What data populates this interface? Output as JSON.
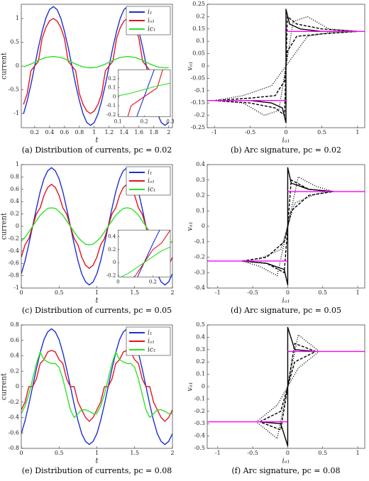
{
  "chart_data": [
    {
      "type": "line",
      "caption": "(a) Distribution of currents, pc = 0.02",
      "xlabel": "t",
      "ylabel": "current",
      "xlim": [
        0.02,
        2.05
      ],
      "xticks": [
        0.2,
        0.4,
        0.6,
        0.8,
        1,
        1.2,
        1.4,
        1.6,
        1.8,
        2
      ],
      "ylim": [
        -1.3,
        1.3
      ],
      "yticks": [
        -1,
        -0.5,
        0,
        0.5,
        1
      ],
      "legend": "upper right",
      "x": [
        0.05,
        0.1,
        0.15,
        0.2,
        0.25,
        0.3,
        0.35,
        0.4,
        0.45,
        0.5,
        0.55,
        0.6,
        0.65,
        0.7,
        0.75,
        0.8,
        0.85,
        0.9,
        0.95,
        1,
        1.05,
        1.1,
        1.15,
        1.2,
        1.25,
        1.3,
        1.35,
        1.4,
        1.45,
        1.5,
        1.55,
        1.6,
        1.65,
        1.7,
        1.75,
        1.8,
        1.85,
        1.9,
        1.95,
        2
      ],
      "series": [
        {
          "name": "i₁",
          "color": "#1f2fd0",
          "values": [
            -1.01,
            -0.73,
            -0.39,
            0,
            0.39,
            0.73,
            1.01,
            1.19,
            1.25,
            1.19,
            1.01,
            0.73,
            0.39,
            0,
            -0.39,
            -0.73,
            -1.01,
            -1.19,
            -1.25,
            -1.19,
            -1.01,
            -0.73,
            -0.39,
            0,
            0.39,
            0.73,
            1.01,
            1.19,
            1.25,
            1.19,
            1.01,
            0.73,
            0.39,
            0,
            -0.39,
            -0.73,
            -1.01,
            -1.19,
            -1.25,
            -1.19
          ]
        },
        {
          "name": "iₐ₁",
          "color": "#e0141e",
          "values": [
            -0.81,
            -0.58,
            -0.1,
            0,
            0.1,
            0.58,
            0.81,
            0.95,
            1,
            0.95,
            0.81,
            0.58,
            0.1,
            0,
            -0.1,
            -0.58,
            -0.81,
            -0.95,
            -1,
            -0.95,
            -0.81,
            -0.58,
            -0.1,
            0,
            0.1,
            0.58,
            0.81,
            0.95,
            1,
            0.95,
            0.81,
            0.58,
            0.1,
            0,
            -0.1,
            -0.58,
            -0.81,
            -0.95,
            -1,
            -0.95
          ]
        },
        {
          "name": "ic₁",
          "color": "#2ee02a",
          "values": [
            -0.02,
            0.01,
            0.04,
            0.08,
            0.12,
            0.15,
            0.18,
            0.19,
            0.2,
            0.19,
            0.18,
            0.15,
            0.12,
            0.08,
            0.04,
            0.01,
            -0.02,
            -0.03,
            -0.04,
            -0.03,
            -0.02,
            0.01,
            0.04,
            0.08,
            0.12,
            0.15,
            0.18,
            0.19,
            0.2,
            0.19,
            0.18,
            0.15,
            0.12,
            0.08,
            0.04,
            0.01,
            -0.02,
            -0.03,
            -0.04,
            -0.03
          ]
        }
      ],
      "inset": {
        "xlim": [
          0.1,
          0.3
        ],
        "xticks": [
          0.1,
          0.2,
          0.3
        ],
        "ylim": [
          -0.22,
          0.3
        ],
        "yticks": [
          -0.2,
          -0.1,
          0,
          0.1,
          0.2
        ]
      }
    },
    {
      "type": "line",
      "caption": "(b) Arc signature, pc = 0.02",
      "xlabel": "iₐ₁",
      "ylabel": "vₐ₁",
      "xlim": [
        -1.1,
        1.1
      ],
      "xticks": [
        -1,
        -0.5,
        0,
        0.5,
        1
      ],
      "ylim": [
        -0.25,
        0.25
      ],
      "yticks": [
        -0.25,
        -0.2,
        -0.15,
        -0.1,
        -0.05,
        0,
        0.05,
        0.1,
        0.15,
        0.2,
        0.25
      ],
      "series": [
        {
          "color": "#000000",
          "style": "dotted",
          "x": [
            -1,
            -0.6,
            -0.2,
            0,
            0.2,
            0.3,
            0.6,
            1,
            0.6,
            0.3,
            0.1,
            0,
            -0.1,
            -0.3,
            -0.6,
            -1
          ],
          "values": [
            -0.14,
            -0.12,
            -0.08,
            0,
            0.08,
            0.12,
            0.135,
            0.14,
            0.15,
            0.2,
            0.18,
            0,
            -0.18,
            -0.2,
            -0.15,
            -0.14
          ]
        },
        {
          "color": "#000000",
          "style": "dashed",
          "x": [
            -1,
            -0.5,
            -0.15,
            -0.02,
            0,
            0.02,
            0.15,
            0.5,
            1,
            0.5,
            0.15,
            0.02,
            0,
            -0.02,
            -0.15,
            -0.5,
            -1
          ],
          "values": [
            -0.14,
            -0.13,
            -0.12,
            -0.06,
            0,
            0.06,
            0.12,
            0.13,
            0.14,
            0.15,
            0.17,
            0.2,
            0,
            -0.2,
            -0.17,
            -0.15,
            -0.14
          ]
        },
        {
          "color": "#000000",
          "style": "solid",
          "x": [
            -1,
            -0.5,
            -0.2,
            -0.05,
            0,
            0,
            0.05,
            0.2,
            0.5,
            1
          ],
          "values": [
            -0.14,
            -0.14,
            -0.15,
            -0.17,
            -0.23,
            0.23,
            0.17,
            0.15,
            0.14,
            0.14
          ]
        },
        {
          "color": "#ff00ff",
          "style": "solid",
          "x": [
            -1.1,
            0
          ],
          "values": [
            -0.14,
            -0.14
          ]
        },
        {
          "color": "#ff00ff",
          "style": "solid",
          "x": [
            0,
            1.1
          ],
          "values": [
            0.14,
            0.14
          ]
        }
      ]
    },
    {
      "type": "line",
      "caption": "(c) Distribution of currents, pc = 0.05",
      "xlabel": "t",
      "ylabel": "current",
      "xlim": [
        0,
        2
      ],
      "xticks": [
        0,
        0.5,
        1,
        1.5,
        2
      ],
      "ylim": [
        -1,
        1
      ],
      "yticks": [
        -1,
        -0.8,
        -0.6,
        -0.4,
        -0.2,
        0,
        0.2,
        0.4,
        0.6,
        0.8,
        1
      ],
      "legend": "upper right",
      "x": [
        0,
        0.05,
        0.1,
        0.15,
        0.2,
        0.25,
        0.3,
        0.35,
        0.4,
        0.45,
        0.5,
        0.55,
        0.6,
        0.65,
        0.7,
        0.75,
        0.8,
        0.85,
        0.9,
        0.95,
        1,
        1.05,
        1.1,
        1.15,
        1.2,
        1.25,
        1.3,
        1.35,
        1.4,
        1.45,
        1.5,
        1.55,
        1.6,
        1.65,
        1.7,
        1.75,
        1.8,
        1.85,
        1.9,
        1.95,
        2
      ],
      "series": [
        {
          "name": "i₁",
          "color": "#1f2fd0",
          "values": [
            -0.77,
            -0.56,
            -0.29,
            0,
            0.29,
            0.56,
            0.77,
            0.9,
            0.95,
            0.9,
            0.77,
            0.56,
            0.29,
            0,
            -0.29,
            -0.56,
            -0.77,
            -0.9,
            -0.95,
            -0.9,
            -0.77,
            -0.56,
            -0.29,
            0,
            0.29,
            0.56,
            0.77,
            0.9,
            0.95,
            0.9,
            0.77,
            0.56,
            0.29,
            0,
            -0.29,
            -0.56,
            -0.77,
            -0.9,
            -0.95,
            -0.9,
            -0.77
          ]
        },
        {
          "name": "iₐ₁",
          "color": "#e0141e",
          "values": [
            -0.5,
            -0.3,
            -0.2,
            0,
            0.2,
            0.3,
            0.5,
            0.63,
            0.68,
            0.63,
            0.5,
            0.3,
            0.2,
            0,
            -0.2,
            -0.3,
            -0.5,
            -0.63,
            -0.68,
            -0.63,
            -0.5,
            -0.3,
            -0.2,
            0,
            0.2,
            0.3,
            0.5,
            0.63,
            0.68,
            0.63,
            0.5,
            0.3,
            0.2,
            0,
            -0.2,
            -0.3,
            -0.5,
            -0.63,
            -0.68,
            -0.63,
            -0.5
          ]
        },
        {
          "name": "ic₁",
          "color": "#2ee02a",
          "values": [
            -0.24,
            -0.18,
            -0.09,
            0,
            0.09,
            0.18,
            0.24,
            0.29,
            0.3,
            0.29,
            0.24,
            0.18,
            0.09,
            0,
            -0.09,
            -0.18,
            -0.24,
            -0.29,
            -0.3,
            -0.29,
            -0.24,
            -0.18,
            -0.09,
            0,
            0.09,
            0.18,
            0.24,
            0.29,
            0.3,
            0.29,
            0.24,
            0.18,
            0.09,
            0,
            -0.09,
            -0.18,
            -0.24,
            -0.29,
            -0.3,
            -0.29,
            -0.24
          ]
        }
      ],
      "inset": {
        "xlim": [
          0,
          0.3
        ],
        "xticks": [
          0,
          0.2
        ],
        "ylim": [
          -0.22,
          0.5
        ],
        "yticks": [
          -0.2,
          0,
          0.2,
          0.4
        ]
      }
    },
    {
      "type": "line",
      "caption": "(d) Arc signature, pc = 0.05",
      "xlabel": "iₐ₁",
      "ylabel": "vₐ₁",
      "xlim": [
        -1.15,
        1.1
      ],
      "xticks": [
        -1,
        -0.5,
        0,
        0.5,
        1
      ],
      "ylim": [
        -0.4,
        0.4
      ],
      "yticks": [
        -0.4,
        -0.3,
        -0.2,
        -0.1,
        0,
        0.1,
        0.2,
        0.3,
        0.4
      ],
      "series": [
        {
          "color": "#000000",
          "style": "dotted",
          "x": [
            -0.65,
            -0.4,
            -0.1,
            0,
            0.1,
            0.4,
            0.65,
            0.4,
            0.15,
            0,
            -0.15,
            -0.4,
            -0.65
          ],
          "values": [
            -0.225,
            -0.21,
            -0.15,
            0,
            0.15,
            0.21,
            0.225,
            0.26,
            0.32,
            0,
            -0.32,
            -0.26,
            -0.225
          ]
        },
        {
          "color": "#000000",
          "style": "dashed",
          "x": [
            -0.65,
            -0.3,
            -0.05,
            0,
            0.05,
            0.3,
            0.65,
            0.3,
            0.05,
            0,
            -0.05,
            -0.3,
            -0.65
          ],
          "values": [
            -0.225,
            -0.2,
            -0.1,
            0,
            0.1,
            0.2,
            0.225,
            0.24,
            0.3,
            0,
            -0.3,
            -0.24,
            -0.225
          ]
        },
        {
          "color": "#000000",
          "style": "solid",
          "x": [
            -0.65,
            -0.3,
            -0.05,
            0,
            0,
            0.05,
            0.3,
            0.65
          ],
          "values": [
            -0.225,
            -0.24,
            -0.28,
            -0.38,
            0.38,
            0.28,
            0.24,
            0.225
          ]
        },
        {
          "color": "#ff00ff",
          "style": "solid",
          "x": [
            -1.15,
            0
          ],
          "values": [
            -0.225,
            -0.225
          ]
        },
        {
          "color": "#ff00ff",
          "style": "solid",
          "x": [
            0,
            1.1
          ],
          "values": [
            0.225,
            0.225
          ]
        }
      ]
    },
    {
      "type": "line",
      "caption": "(e) Distribution of currents, pc = 0.08",
      "xlabel": "t",
      "ylabel": "current",
      "xlim": [
        0,
        2
      ],
      "xticks": [
        0,
        0.5,
        1,
        1.5,
        2
      ],
      "ylim": [
        -0.8,
        0.8
      ],
      "yticks": [
        -0.8,
        -0.6,
        -0.4,
        -0.2,
        0,
        0.2,
        0.4,
        0.6,
        0.8
      ],
      "legend": "upper right",
      "x": [
        0,
        0.05,
        0.1,
        0.15,
        0.2,
        0.25,
        0.3,
        0.35,
        0.4,
        0.45,
        0.5,
        0.55,
        0.6,
        0.65,
        0.7,
        0.75,
        0.8,
        0.85,
        0.9,
        0.95,
        1,
        1.05,
        1.1,
        1.15,
        1.2,
        1.25,
        1.3,
        1.35,
        1.4,
        1.45,
        1.5,
        1.55,
        1.6,
        1.65,
        1.7,
        1.75,
        1.8,
        1.85,
        1.9,
        1.95,
        2
      ],
      "series": [
        {
          "name": "i₁",
          "color": "#1f2fd0",
          "values": [
            -0.61,
            -0.44,
            -0.23,
            0,
            0.23,
            0.44,
            0.61,
            0.71,
            0.75,
            0.71,
            0.61,
            0.44,
            0.23,
            0,
            -0.23,
            -0.44,
            -0.61,
            -0.71,
            -0.75,
            -0.71,
            -0.61,
            -0.44,
            -0.23,
            0,
            0.23,
            0.44,
            0.61,
            0.71,
            0.75,
            0.71,
            0.61,
            0.44,
            0.23,
            0,
            -0.23,
            -0.44,
            -0.61,
            -0.71,
            -0.75,
            -0.71,
            -0.61
          ]
        },
        {
          "name": "iₐ₁",
          "color": "#e0141e",
          "values": [
            -0.3,
            -0.2,
            0,
            0,
            0.1,
            0.3,
            0.35,
            0.45,
            0.47,
            0.45,
            0.35,
            0.3,
            0.1,
            0,
            0,
            -0.2,
            -0.3,
            -0.4,
            -0.45,
            -0.4,
            -0.3,
            -0.2,
            0,
            0,
            0.1,
            0.3,
            0.35,
            0.45,
            0.47,
            0.45,
            0.35,
            0.3,
            0.1,
            0,
            0,
            -0.2,
            -0.3,
            -0.4,
            -0.45,
            -0.4,
            -0.3
          ]
        },
        {
          "name": "ic₁",
          "color": "#2ee02a",
          "values": [
            -0.35,
            -0.25,
            -0.1,
            0.1,
            0.3,
            0.45,
            0.35,
            0.32,
            0.3,
            0.3,
            0.25,
            0.1,
            -0.1,
            -0.3,
            -0.4,
            -0.35,
            -0.3,
            -0.3,
            -0.32,
            -0.35,
            -0.35,
            -0.25,
            -0.1,
            0.1,
            0.3,
            0.45,
            0.35,
            0.32,
            0.3,
            0.3,
            0.25,
            0.1,
            -0.1,
            -0.3,
            -0.4,
            -0.35,
            -0.3,
            -0.3,
            -0.32,
            -0.35,
            -0.35
          ]
        }
      ]
    },
    {
      "type": "line",
      "caption": "(f) Arc signature, pc = 0.08",
      "xlabel": "iₐ₁",
      "ylabel": "vₐ₁",
      "xlim": [
        -1.15,
        1.1
      ],
      "xticks": [
        -1,
        -0.5,
        0,
        0.5,
        1
      ],
      "ylim": [
        -0.5,
        0.5
      ],
      "yticks": [
        -0.5,
        -0.4,
        -0.3,
        -0.2,
        -0.1,
        0,
        0.1,
        0.2,
        0.3,
        0.4,
        0.5
      ],
      "series": [
        {
          "color": "#000000",
          "style": "dotted",
          "x": [
            -0.45,
            -0.15,
            0,
            0.15,
            0.45,
            0.15,
            0,
            -0.15,
            -0.45
          ],
          "values": [
            -0.285,
            -0.15,
            0,
            0.15,
            0.285,
            0.42,
            0,
            -0.42,
            -0.285
          ]
        },
        {
          "color": "#000000",
          "style": "dashed",
          "x": [
            -0.4,
            -0.1,
            0,
            0.1,
            0.4,
            0.1,
            0,
            -0.1,
            -0.4
          ],
          "values": [
            -0.285,
            -0.2,
            0,
            0.2,
            0.285,
            0.35,
            0,
            -0.35,
            -0.285
          ]
        },
        {
          "color": "#000000",
          "style": "solid",
          "x": [
            -0.4,
            -0.1,
            0,
            0,
            0.1,
            0.4
          ],
          "values": [
            -0.285,
            -0.3,
            -0.48,
            0.48,
            0.3,
            0.285
          ]
        },
        {
          "color": "#ff00ff",
          "style": "solid",
          "x": [
            -1.15,
            0
          ],
          "values": [
            -0.285,
            -0.285
          ]
        },
        {
          "color": "#ff00ff",
          "style": "solid",
          "x": [
            0,
            1.1
          ],
          "values": [
            0.285,
            0.285
          ]
        }
      ]
    }
  ]
}
